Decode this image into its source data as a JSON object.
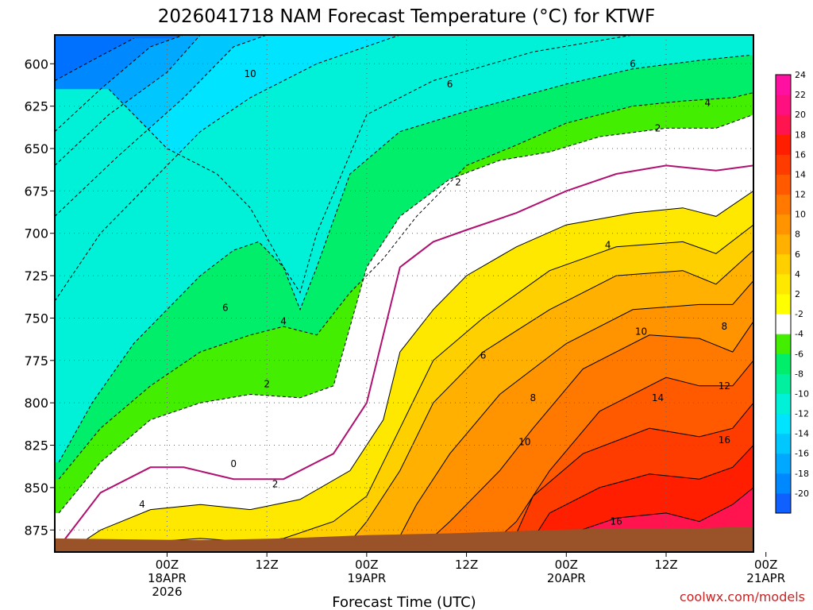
{
  "chart_data": {
    "type": "area",
    "title": "2026041718 NAM Forecast Temperature (°C) for KTWF",
    "xlabel": "Forecast Time (UTC)",
    "ylabel": "",
    "credit": "coolwx.com/models",
    "y_axis": {
      "scale": "pressure",
      "inverted": true,
      "ticks": [
        600,
        625,
        650,
        675,
        700,
        725,
        750,
        775,
        800,
        825,
        850,
        875
      ],
      "range": [
        583,
        888
      ]
    },
    "x_axis": {
      "range_hours": [
        -7.5,
        76.5
      ],
      "ticks": [
        {
          "hour": 6,
          "lines": [
            "00Z",
            "18APR",
            "2026"
          ]
        },
        {
          "hour": 18,
          "lines": [
            "12Z"
          ]
        },
        {
          "hour": 30,
          "lines": [
            "00Z",
            "19APR"
          ]
        },
        {
          "hour": 42,
          "lines": [
            "12Z"
          ]
        },
        {
          "hour": 54,
          "lines": [
            "00Z",
            "20APR"
          ]
        },
        {
          "hour": 66,
          "lines": [
            "12Z"
          ]
        },
        {
          "hour": 78,
          "lines": [
            "00Z",
            "21APR"
          ]
        }
      ]
    },
    "grid": true,
    "colorbar": {
      "placement": "right",
      "levels": [
        -20,
        -18,
        -16,
        -14,
        -12,
        -10,
        -8,
        -6,
        -4,
        -2,
        2,
        4,
        6,
        8,
        10,
        12,
        14,
        16,
        18,
        20,
        22,
        24
      ],
      "colors": [
        "#1060ff",
        "#0088ff",
        "#00a8ff",
        "#00c8ff",
        "#00e4ff",
        "#00f0d8",
        "#00f0a0",
        "#00ee6a",
        "#44ee00",
        "#ffffff",
        "#ffff00",
        "#ffe800",
        "#ffd000",
        "#ffb000",
        "#ff9400",
        "#ff7800",
        "#ff5a00",
        "#ff3c00",
        "#ff1e00",
        "#ff1450",
        "#ff1080",
        "#ff10a0"
      ]
    },
    "isotherms": [
      {
        "temp": -10,
        "label": "10",
        "points": [
          [
            -1,
            615
          ],
          [
            6,
            650
          ],
          [
            12,
            665
          ],
          [
            16,
            685
          ],
          [
            20,
            720
          ],
          [
            22,
            735
          ],
          [
            24,
            700
          ],
          [
            30,
            630
          ],
          [
            38,
            610
          ],
          [
            50,
            593
          ],
          [
            62,
            583
          ]
        ]
      },
      {
        "temp": -6,
        "label": "6",
        "points": [
          [
            -7,
            835
          ],
          [
            -3,
            800
          ],
          [
            2,
            765
          ],
          [
            6,
            745
          ],
          [
            10,
            725
          ],
          [
            14,
            710
          ],
          [
            17,
            705
          ],
          [
            20,
            720
          ],
          [
            22,
            745
          ],
          [
            24,
            720
          ],
          [
            28,
            665
          ],
          [
            34,
            640
          ],
          [
            42,
            628
          ],
          [
            54,
            612
          ],
          [
            62,
            603
          ],
          [
            70,
            598
          ],
          [
            76,
            595
          ]
        ]
      },
      {
        "temp": -4,
        "label": "4",
        "points": [
          [
            -7,
            845
          ],
          [
            -2,
            815
          ],
          [
            4,
            790
          ],
          [
            10,
            770
          ],
          [
            16,
            760
          ],
          [
            20,
            755
          ],
          [
            24,
            760
          ],
          [
            28,
            735
          ],
          [
            32,
            715
          ],
          [
            36,
            690
          ],
          [
            42,
            660
          ],
          [
            48,
            648
          ],
          [
            54,
            635
          ],
          [
            62,
            625
          ],
          [
            68,
            622
          ],
          [
            74,
            620
          ],
          [
            76.5,
            617
          ]
        ]
      },
      {
        "temp": -2,
        "label": "2",
        "points": [
          [
            -7,
            865
          ],
          [
            -2,
            835
          ],
          [
            4,
            810
          ],
          [
            10,
            800
          ],
          [
            16,
            795
          ],
          [
            22,
            797
          ],
          [
            26,
            790
          ],
          [
            30,
            720
          ],
          [
            34,
            690
          ],
          [
            40,
            668
          ],
          [
            46,
            657
          ],
          [
            52,
            652
          ],
          [
            58,
            643
          ],
          [
            66,
            638
          ],
          [
            72,
            638
          ],
          [
            76.5,
            630
          ]
        ]
      },
      {
        "temp": 0,
        "label": "0",
        "points": [
          [
            -7,
            885
          ],
          [
            -2,
            853
          ],
          [
            4,
            838
          ],
          [
            8,
            838
          ],
          [
            14,
            845
          ],
          [
            20,
            845
          ],
          [
            26,
            830
          ],
          [
            30,
            800
          ],
          [
            32,
            760
          ],
          [
            34,
            720
          ],
          [
            38,
            705
          ],
          [
            42,
            698
          ],
          [
            48,
            688
          ],
          [
            54,
            675
          ],
          [
            60,
            665
          ],
          [
            66,
            660
          ],
          [
            72,
            663
          ],
          [
            76.5,
            660
          ]
        ]
      },
      {
        "temp": 2,
        "label": "2",
        "points": [
          [
            -6,
            888
          ],
          [
            -2,
            875
          ],
          [
            4,
            863
          ],
          [
            10,
            860
          ],
          [
            16,
            863
          ],
          [
            22,
            857
          ],
          [
            28,
            840
          ],
          [
            32,
            810
          ],
          [
            34,
            770
          ],
          [
            38,
            745
          ],
          [
            42,
            725
          ],
          [
            48,
            708
          ],
          [
            54,
            695
          ],
          [
            62,
            688
          ],
          [
            68,
            685
          ],
          [
            72,
            690
          ],
          [
            76.5,
            675
          ]
        ]
      },
      {
        "temp": 4,
        "label": "4",
        "points": [
          [
            0,
            888
          ],
          [
            4,
            882
          ],
          [
            10,
            880
          ],
          [
            16,
            882
          ],
          [
            20,
            880
          ],
          [
            26,
            870
          ],
          [
            30,
            855
          ],
          [
            34,
            815
          ],
          [
            38,
            775
          ],
          [
            44,
            750
          ],
          [
            52,
            722
          ],
          [
            60,
            708
          ],
          [
            68,
            705
          ],
          [
            72,
            712
          ],
          [
            76.5,
            695
          ]
        ]
      },
      {
        "temp": 6,
        "label": "6",
        "points": [
          [
            27,
            888
          ],
          [
            30,
            870
          ],
          [
            34,
            840
          ],
          [
            38,
            800
          ],
          [
            44,
            770
          ],
          [
            52,
            745
          ],
          [
            60,
            725
          ],
          [
            68,
            722
          ],
          [
            72,
            730
          ],
          [
            76.5,
            710
          ]
        ]
      },
      {
        "temp": 8,
        "label": "8",
        "points": [
          [
            33,
            888
          ],
          [
            36,
            860
          ],
          [
            40,
            830
          ],
          [
            46,
            795
          ],
          [
            54,
            765
          ],
          [
            62,
            745
          ],
          [
            70,
            742
          ],
          [
            74,
            742
          ],
          [
            76.5,
            728
          ]
        ]
      },
      {
        "temp": 10,
        "label": "10",
        "points": [
          [
            36,
            888
          ],
          [
            40,
            870
          ],
          [
            46,
            840
          ],
          [
            50,
            815
          ],
          [
            56,
            780
          ],
          [
            64,
            760
          ],
          [
            70,
            762
          ],
          [
            74,
            770
          ],
          [
            76.5,
            752
          ]
        ]
      },
      {
        "temp": 12,
        "label": "12",
        "points": [
          [
            44,
            888
          ],
          [
            48,
            870
          ],
          [
            52,
            840
          ],
          [
            58,
            805
          ],
          [
            66,
            785
          ],
          [
            70,
            790
          ],
          [
            74,
            790
          ],
          [
            76.5,
            775
          ]
        ]
      },
      {
        "temp": 14,
        "label": "14",
        "points": [
          [
            47,
            888
          ],
          [
            50,
            855
          ],
          [
            56,
            830
          ],
          [
            64,
            815
          ],
          [
            70,
            820
          ],
          [
            74,
            815
          ],
          [
            76.5,
            800
          ]
        ]
      },
      {
        "temp": 16,
        "label": "16",
        "points": [
          [
            49,
            888
          ],
          [
            52,
            865
          ],
          [
            58,
            850
          ],
          [
            64,
            842
          ],
          [
            70,
            845
          ],
          [
            74,
            838
          ],
          [
            76.5,
            825
          ]
        ]
      },
      {
        "temp": 18,
        "label": "18",
        "points": [
          [
            51,
            888
          ],
          [
            54,
            878
          ],
          [
            60,
            868
          ],
          [
            66,
            865
          ],
          [
            70,
            870
          ],
          [
            74,
            860
          ],
          [
            76.5,
            850
          ]
        ]
      }
    ],
    "contour_labels": [
      {
        "hour": 16,
        "p": 606,
        "text": "10"
      },
      {
        "hour": 13,
        "p": 744,
        "text": "6"
      },
      {
        "hour": 20,
        "p": 752,
        "text": "4"
      },
      {
        "hour": 18,
        "p": 789,
        "text": "2"
      },
      {
        "hour": 3,
        "p": 860,
        "text": "4"
      },
      {
        "hour": 14,
        "p": 836,
        "text": "0"
      },
      {
        "hour": 19,
        "p": 848,
        "text": "2"
      },
      {
        "hour": 40,
        "p": 612,
        "text": "6"
      },
      {
        "hour": 41,
        "p": 670,
        "text": "2"
      },
      {
        "hour": 62,
        "p": 600,
        "text": "6"
      },
      {
        "hour": 71,
        "p": 623,
        "text": "4"
      },
      {
        "hour": 65,
        "p": 638,
        "text": "2"
      },
      {
        "hour": 59,
        "p": 707,
        "text": "4"
      },
      {
        "hour": 44,
        "p": 772,
        "text": "6"
      },
      {
        "hour": 50,
        "p": 797,
        "text": "8"
      },
      {
        "hour": 63,
        "p": 758,
        "text": "10"
      },
      {
        "hour": 73,
        "p": 755,
        "text": "8"
      },
      {
        "hour": 49,
        "p": 823,
        "text": "10"
      },
      {
        "hour": 65,
        "p": 797,
        "text": "14"
      },
      {
        "hour": 73,
        "p": 790,
        "text": "12"
      },
      {
        "hour": 73,
        "p": 822,
        "text": "16"
      },
      {
        "hour": 60,
        "p": 870,
        "text": "16"
      }
    ]
  }
}
